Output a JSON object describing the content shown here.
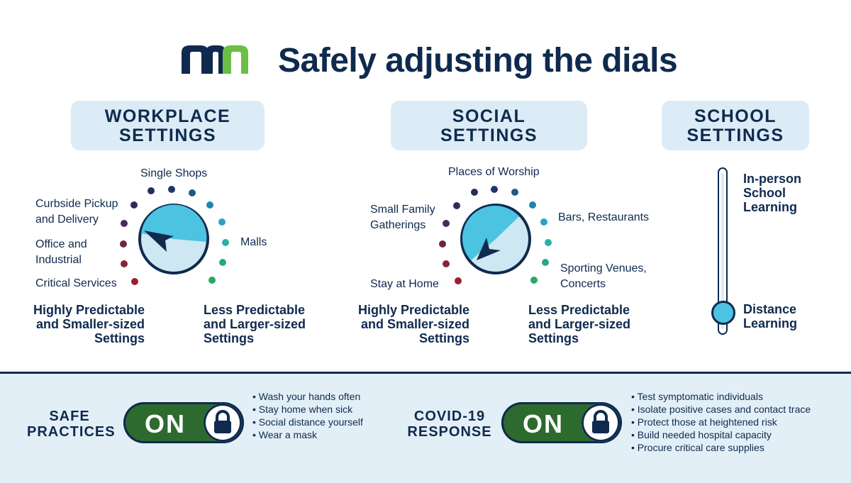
{
  "header": {
    "title": "Safely adjusting the dials",
    "logo_text": "mn"
  },
  "sections": {
    "workplace": {
      "title_line1": "WORKPLACE",
      "title_line2": "SETTINGS"
    },
    "social": {
      "title_line1": "SOCIAL",
      "title_line2": "SETTINGS"
    },
    "school": {
      "title_line1": "SCHOOL",
      "title_line2": "SETTINGS"
    }
  },
  "workplace_dial": {
    "labels": {
      "single_shops": "Single Shops",
      "curbside_1": "Curbside Pickup",
      "curbside_2": "and Delivery",
      "office_1": "Office and",
      "office_2": "Industrial",
      "critical": "Critical Services",
      "malls": "Malls"
    },
    "left_caption": [
      "Highly Predictable",
      "and Smaller-sized",
      "Settings"
    ],
    "right_caption": [
      "Less Predictable",
      "and Larger-sized",
      "Settings"
    ]
  },
  "social_dial": {
    "labels": {
      "worship": "Places of Worship",
      "small_1": "Small Family",
      "small_2": "Gatherings",
      "bars": "Bars, Restaurants",
      "sporting_1": "Sporting Venues,",
      "sporting_2": "Concerts",
      "stay": "Stay at Home"
    },
    "left_caption": [
      "Highly Predictable",
      "and Smaller-sized",
      "Settings"
    ],
    "right_caption": [
      "Less Predictable",
      "and Larger-sized",
      "Settings"
    ]
  },
  "school_slider": {
    "top_label": [
      "In-person",
      "School",
      "Learning"
    ],
    "bottom_label": [
      "Distance",
      "Learning"
    ],
    "position": "Distance Learning"
  },
  "safe_practices": {
    "label_1": "SAFE",
    "label_2": "PRACTICES",
    "state": "ON",
    "bullets": [
      "Wash your hands often",
      "Stay home when sick",
      "Social distance yourself",
      "Wear a mask"
    ]
  },
  "covid_response": {
    "label_1": "COVID-19",
    "label_2": "RESPONSE",
    "state": "ON",
    "bullets": [
      "Test symptomatic individuals",
      "Isolate positive cases and contact trace",
      "Protect those at heightened risk",
      "Build needed hospital capacity",
      "Procure critical care supplies"
    ]
  },
  "colors": {
    "navy": "#0f2a4e",
    "green": "#2d6a2e",
    "light_blue": "#dcecf6",
    "dial_blue": "#4cc3e0",
    "logo_green": "#6cbe45"
  }
}
